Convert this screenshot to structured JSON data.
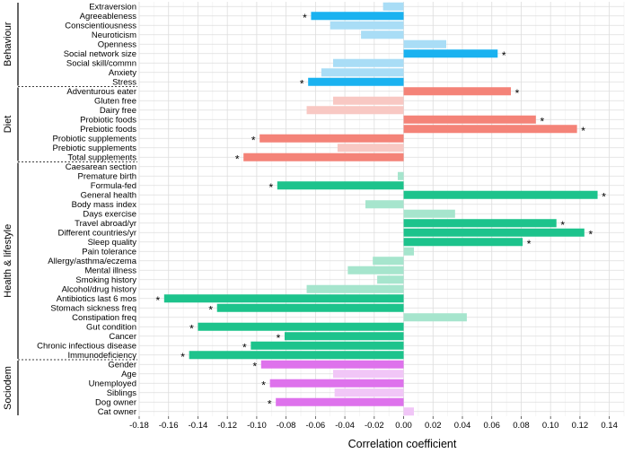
{
  "chart_data": {
    "type": "bar",
    "orientation": "horizontal",
    "xlabel": "Correlation coefficient",
    "xlim": [
      -0.18,
      0.15
    ],
    "xticks": [
      -0.18,
      -0.16,
      -0.14,
      -0.12,
      -0.1,
      -0.08,
      -0.06,
      -0.04,
      -0.02,
      0.0,
      0.02,
      0.04,
      0.06,
      0.08,
      0.1,
      0.12,
      0.14
    ],
    "xtick_labels": [
      "-0.18",
      "-0.16",
      "-0.14",
      "-0.12",
      "-0.10",
      "-0.08",
      "-0.06",
      "-0.04",
      "-0.02",
      "0.00",
      "0.02",
      "0.04",
      "0.06",
      "0.08",
      "0.10",
      "0.12",
      "0.14"
    ],
    "grid": true,
    "significance_marker": "*",
    "groups": [
      {
        "name": "Behaviour",
        "color": "#1ab2f0",
        "light_color": "#a9ddf6",
        "items": [
          {
            "label": "Extraversion",
            "value": -0.014,
            "significant": false
          },
          {
            "label": "Agreeableness",
            "value": -0.063,
            "significant": true
          },
          {
            "label": "Conscientiousness",
            "value": -0.05,
            "significant": false
          },
          {
            "label": "Neuroticism",
            "value": -0.029,
            "significant": false
          },
          {
            "label": "Openness",
            "value": 0.029,
            "significant": false
          },
          {
            "label": "Social network size",
            "value": 0.064,
            "significant": true
          },
          {
            "label": "Social skill/commn",
            "value": -0.048,
            "significant": false
          },
          {
            "label": "Anxiety",
            "value": -0.056,
            "significant": false
          },
          {
            "label": "Stress",
            "value": -0.065,
            "significant": true
          }
        ]
      },
      {
        "name": "Diet",
        "color": "#f48378",
        "light_color": "#f8c8c3",
        "items": [
          {
            "label": "Adventurous eater",
            "value": 0.073,
            "significant": true
          },
          {
            "label": "Gluten free",
            "value": -0.048,
            "significant": false
          },
          {
            "label": "Dairy free",
            "value": -0.066,
            "significant": false
          },
          {
            "label": "Probiotic foods",
            "value": 0.09,
            "significant": true
          },
          {
            "label": "Prebiotic foods",
            "value": 0.118,
            "significant": true
          },
          {
            "label": "Probiotic supplements",
            "value": -0.098,
            "significant": true
          },
          {
            "label": "Prebiotic supplements",
            "value": -0.045,
            "significant": false
          },
          {
            "label": "Total supplements",
            "value": -0.109,
            "significant": true
          }
        ]
      },
      {
        "name": "Health & lifestyle",
        "color": "#1dc38c",
        "light_color": "#a6e5cd",
        "items": [
          {
            "label": "Caesarean section",
            "value": 0.0,
            "significant": false
          },
          {
            "label": "Premature birth",
            "value": -0.004,
            "significant": false
          },
          {
            "label": "Formula-fed",
            "value": -0.086,
            "significant": true
          },
          {
            "label": "General health",
            "value": 0.132,
            "significant": true
          },
          {
            "label": "Body mass index",
            "value": -0.026,
            "significant": false
          },
          {
            "label": "Days exercise",
            "value": 0.035,
            "significant": false
          },
          {
            "label": "Travel abroad/yr",
            "value": 0.104,
            "significant": true
          },
          {
            "label": "Different countries/yr",
            "value": 0.123,
            "significant": true
          },
          {
            "label": "Sleep quality",
            "value": 0.081,
            "significant": true
          },
          {
            "label": "Pain tolerance",
            "value": 0.007,
            "significant": false
          },
          {
            "label": "Allergy/asthma/eczema",
            "value": -0.021,
            "significant": false
          },
          {
            "label": "Mental illness",
            "value": -0.038,
            "significant": false
          },
          {
            "label": "Smoking history",
            "value": -0.018,
            "significant": false
          },
          {
            "label": "Alcohol/drug history",
            "value": -0.066,
            "significant": false
          },
          {
            "label": "Antibiotics last 6 mos",
            "value": -0.163,
            "significant": true
          },
          {
            "label": "Stomach sickness freq",
            "value": -0.127,
            "significant": true
          },
          {
            "label": "Constipation freq",
            "value": 0.043,
            "significant": false
          },
          {
            "label": "Gut condition",
            "value": -0.14,
            "significant": true
          },
          {
            "label": "Cancer",
            "value": -0.081,
            "significant": true
          },
          {
            "label": "Chronic infectious disease",
            "value": -0.104,
            "significant": true
          },
          {
            "label": "Immunodeficiency",
            "value": -0.146,
            "significant": true
          }
        ]
      },
      {
        "name": "Sociodem",
        "color": "#de72ec",
        "light_color": "#f1c6f7",
        "items": [
          {
            "label": "Gender",
            "value": -0.097,
            "significant": true
          },
          {
            "label": "Age",
            "value": -0.048,
            "significant": false
          },
          {
            "label": "Unemployed",
            "value": -0.091,
            "significant": true
          },
          {
            "label": "Siblings",
            "value": -0.047,
            "significant": false
          },
          {
            "label": "Dog owner",
            "value": -0.087,
            "significant": true
          },
          {
            "label": "Cat owner",
            "value": 0.007,
            "significant": false
          }
        ]
      }
    ]
  }
}
